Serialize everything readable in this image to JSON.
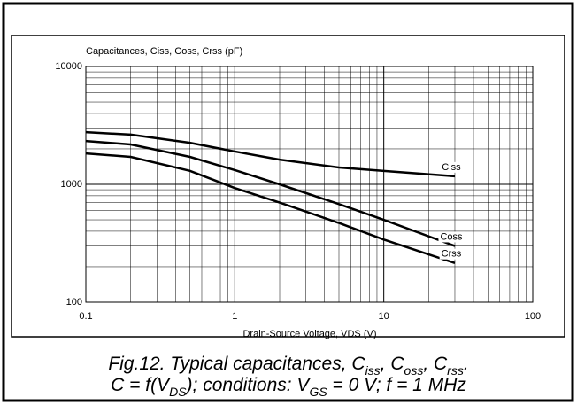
{
  "chart_data": {
    "type": "line",
    "y_label": "Capacitances, Ciss, Coss, Crss (pF)",
    "x_label": "Drain-Source Voltage, VDS (V)",
    "x": [
      0.1,
      0.2,
      0.5,
      1,
      2,
      5,
      10,
      30
    ],
    "series": [
      {
        "name": "Ciss",
        "color": "#000000",
        "values": [
          2770,
          2640,
          2250,
          1900,
          1620,
          1390,
          1300,
          1170
        ]
      },
      {
        "name": "Coss",
        "color": "#000000",
        "values": [
          2330,
          2180,
          1710,
          1320,
          1000,
          680,
          500,
          300
        ]
      },
      {
        "name": "Crss",
        "color": "#000000",
        "values": [
          1830,
          1710,
          1300,
          930,
          700,
          470,
          340,
          215
        ]
      }
    ],
    "xlim": [
      0.1,
      100
    ],
    "xticks": [
      0.1,
      1,
      10,
      100
    ],
    "ylim": [
      100,
      10000
    ],
    "yticks": [
      100,
      1000,
      10000
    ],
    "xscale": "log",
    "yscale": "log",
    "grid": true,
    "caption": [
      [
        "Fig.12.   Typical capacitances, C",
        "iss",
        ", C",
        "oss",
        ", C",
        "rss",
        "."
      ],
      [
        "C = f(V",
        "DS",
        "); conditions: V",
        "GS",
        " = 0 V; f = 1 MHz"
      ]
    ]
  }
}
